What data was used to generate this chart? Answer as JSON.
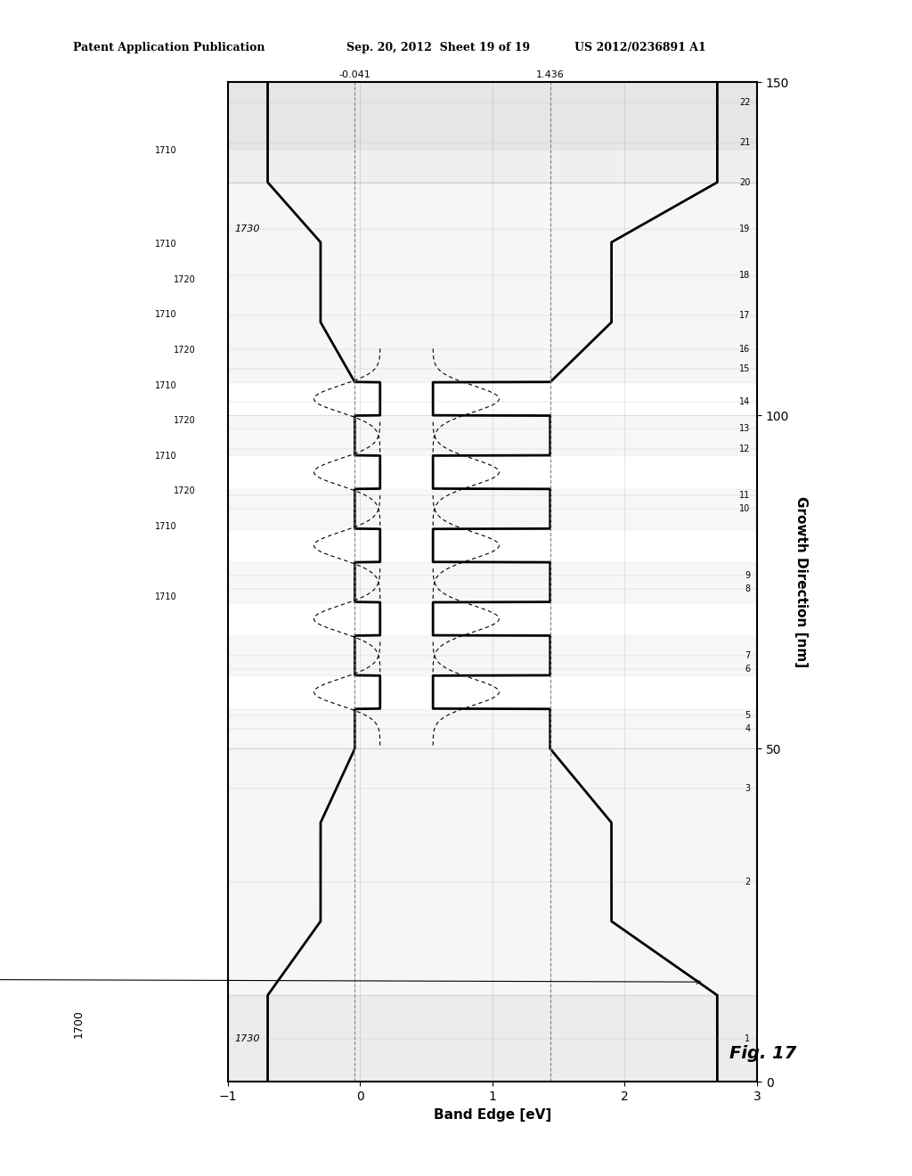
{
  "title_left": "Patent Application Publication",
  "title_center": "Sep. 20, 2012  Sheet 19 of 19",
  "title_right": "US 2012/0236891 A1",
  "fig_label": "Fig. 17",
  "fig_number": "1700",
  "xlabel": "Band Edge [eV]",
  "ylabel": "Growth Direction [nm]",
  "xmin": -1,
  "xmax": 3,
  "ymin": 0,
  "ymax": 150,
  "hline_1436": 1.436,
  "hline_neg041": -0.041,
  "y_ticks_right": [
    50,
    100,
    150
  ],
  "layer_labels": [
    "1",
    "2",
    "3",
    "4",
    "5",
    "6",
    "7",
    "8",
    "9",
    "10",
    "11",
    "12",
    "13",
    "14",
    "15",
    "16",
    "17",
    "18",
    "19",
    "20",
    "21",
    "22"
  ],
  "bg_color": "#ffffff",
  "shaded_color": "#d3d3d3",
  "ref_1710": "1710",
  "ref_1720": "1720",
  "ref_1730": "1730"
}
